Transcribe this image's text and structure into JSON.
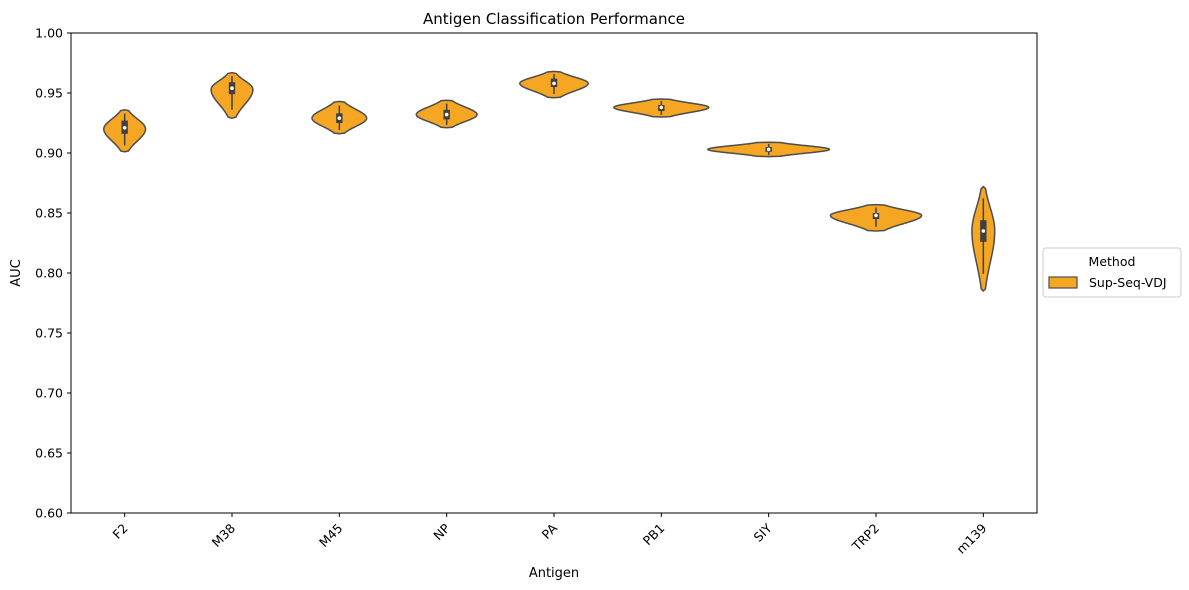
{
  "chart_data": {
    "type": "violin",
    "title": "Antigen Classification Performance",
    "xlabel": "Antigen",
    "ylabel": "AUC",
    "ylim": [
      0.6,
      1.0
    ],
    "yticks": [
      "0.60",
      "0.65",
      "0.70",
      "0.75",
      "0.80",
      "0.85",
      "0.90",
      "0.95",
      "1.00"
    ],
    "categories": [
      "F2",
      "M38",
      "M45",
      "NP",
      "PA",
      "PB1",
      "SIY",
      "TRP2",
      "m139"
    ],
    "grid": false,
    "legend": {
      "title": "Method",
      "placement": "center-right-outside",
      "entries": [
        "Sup-Seq-VDJ"
      ]
    },
    "series": [
      {
        "name": "Sup-Seq-VDJ",
        "color": "#F5A623",
        "edge_color": "#4d4d4d",
        "violins": [
          {
            "category": "F2",
            "min": 0.901,
            "max": 0.936,
            "peak": 0.92,
            "q1": 0.916,
            "median": 0.921,
            "q3": 0.927,
            "relwidth": 0.55
          },
          {
            "category": "M38",
            "min": 0.929,
            "max": 0.967,
            "peak": 0.953,
            "q1": 0.949,
            "median": 0.954,
            "q3": 0.959,
            "relwidth": 0.55
          },
          {
            "category": "M45",
            "min": 0.916,
            "max": 0.943,
            "peak": 0.929,
            "q1": 0.925,
            "median": 0.929,
            "q3": 0.933,
            "relwidth": 0.72
          },
          {
            "category": "NP",
            "min": 0.921,
            "max": 0.944,
            "peak": 0.932,
            "q1": 0.928,
            "median": 0.932,
            "q3": 0.936,
            "relwidth": 0.8
          },
          {
            "category": "PA",
            "min": 0.946,
            "max": 0.968,
            "peak": 0.958,
            "q1": 0.955,
            "median": 0.958,
            "q3": 0.962,
            "relwidth": 0.9
          },
          {
            "category": "PB1",
            "min": 0.93,
            "max": 0.945,
            "peak": 0.938,
            "q1": 0.935,
            "median": 0.938,
            "q3": 0.94,
            "relwidth": 1.25
          },
          {
            "category": "SIY",
            "min": 0.897,
            "max": 0.909,
            "peak": 0.903,
            "q1": 0.901,
            "median": 0.903,
            "q3": 0.905,
            "relwidth": 1.6
          },
          {
            "category": "TRP2",
            "min": 0.835,
            "max": 0.857,
            "peak": 0.848,
            "q1": 0.845,
            "median": 0.848,
            "q3": 0.85,
            "relwidth": 1.2
          },
          {
            "category": "m139",
            "min": 0.785,
            "max": 0.872,
            "peak": 0.835,
            "q1": 0.826,
            "median": 0.835,
            "q3": 0.844,
            "relwidth": 0.3
          }
        ]
      }
    ]
  }
}
